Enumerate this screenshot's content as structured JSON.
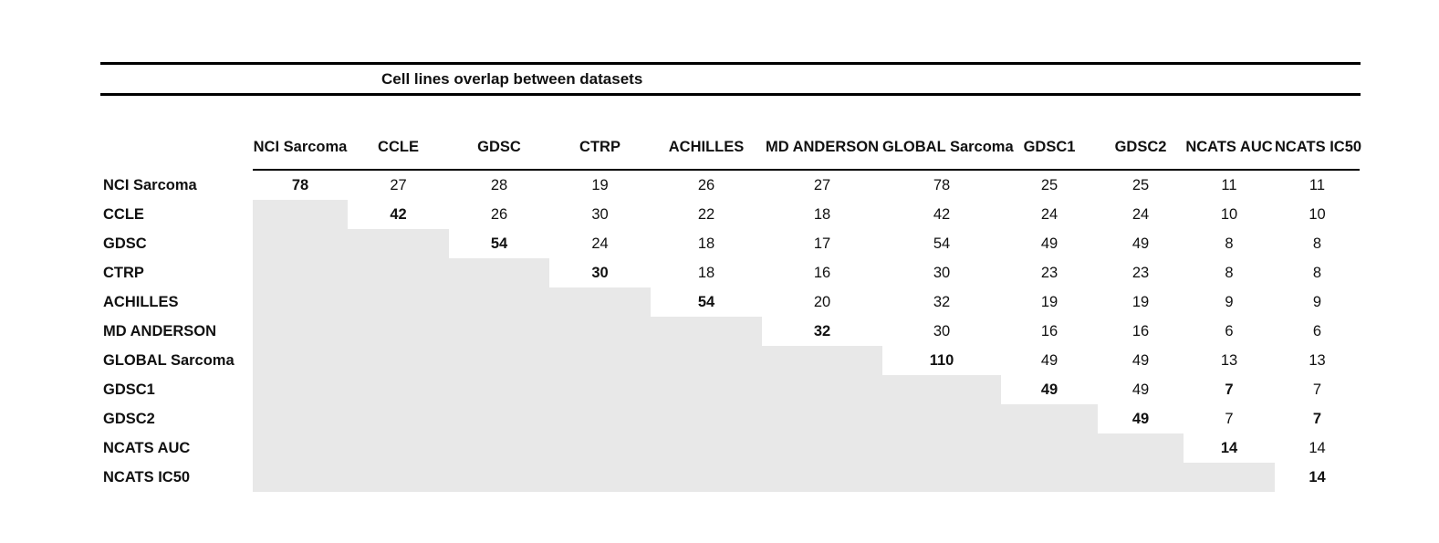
{
  "title": "Cell lines overlap between datasets",
  "colors": {
    "shaded_cell": "#e8e8e8",
    "rule": "#000000",
    "background": "#ffffff"
  },
  "chart_data": {
    "type": "table",
    "title": "Cell lines overlap between datasets",
    "layout": "upper-triangular overlap matrix; diagonal values bold; lower triangle shaded gray with no values",
    "columns": [
      "NCI Sarcoma",
      "CCLE",
      "GDSC",
      "CTRP",
      "ACHILLES",
      "MD ANDERSON",
      "GLOBAL Sarcoma",
      "GDSC1",
      "GDSC2",
      "NCATS AUC",
      "NCATS IC50"
    ],
    "rows": [
      {
        "label": "NCI Sarcoma",
        "values": [
          78,
          27,
          28,
          19,
          26,
          27,
          78,
          25,
          25,
          11,
          11
        ],
        "bold_cols": [
          0
        ]
      },
      {
        "label": "CCLE",
        "values": [
          null,
          42,
          26,
          30,
          22,
          18,
          42,
          24,
          24,
          10,
          10
        ],
        "bold_cols": [
          1
        ]
      },
      {
        "label": "GDSC",
        "values": [
          null,
          null,
          54,
          24,
          18,
          17,
          54,
          49,
          49,
          8,
          8
        ],
        "bold_cols": [
          2
        ]
      },
      {
        "label": "CTRP",
        "values": [
          null,
          null,
          null,
          30,
          18,
          16,
          30,
          23,
          23,
          8,
          8
        ],
        "bold_cols": [
          3
        ]
      },
      {
        "label": "ACHILLES",
        "values": [
          null,
          null,
          null,
          null,
          54,
          20,
          32,
          19,
          19,
          9,
          9
        ],
        "bold_cols": [
          4
        ]
      },
      {
        "label": "MD ANDERSON",
        "values": [
          null,
          null,
          null,
          null,
          null,
          32,
          30,
          16,
          16,
          6,
          6
        ],
        "bold_cols": [
          5
        ]
      },
      {
        "label": "GLOBAL Sarcoma",
        "values": [
          null,
          null,
          null,
          null,
          null,
          null,
          110,
          49,
          49,
          13,
          13
        ],
        "bold_cols": [
          6
        ]
      },
      {
        "label": "GDSC1",
        "values": [
          null,
          null,
          null,
          null,
          null,
          null,
          null,
          49,
          49,
          7,
          7
        ],
        "bold_cols": [
          7,
          9
        ]
      },
      {
        "label": "GDSC2",
        "values": [
          null,
          null,
          null,
          null,
          null,
          null,
          null,
          null,
          49,
          7,
          7
        ],
        "bold_cols": [
          8,
          10
        ]
      },
      {
        "label": "NCATS AUC",
        "values": [
          null,
          null,
          null,
          null,
          null,
          null,
          null,
          null,
          null,
          14,
          14
        ],
        "bold_cols": [
          9
        ]
      },
      {
        "label": "NCATS IC50",
        "values": [
          null,
          null,
          null,
          null,
          null,
          null,
          null,
          null,
          null,
          null,
          14
        ],
        "bold_cols": [
          10
        ]
      }
    ]
  }
}
